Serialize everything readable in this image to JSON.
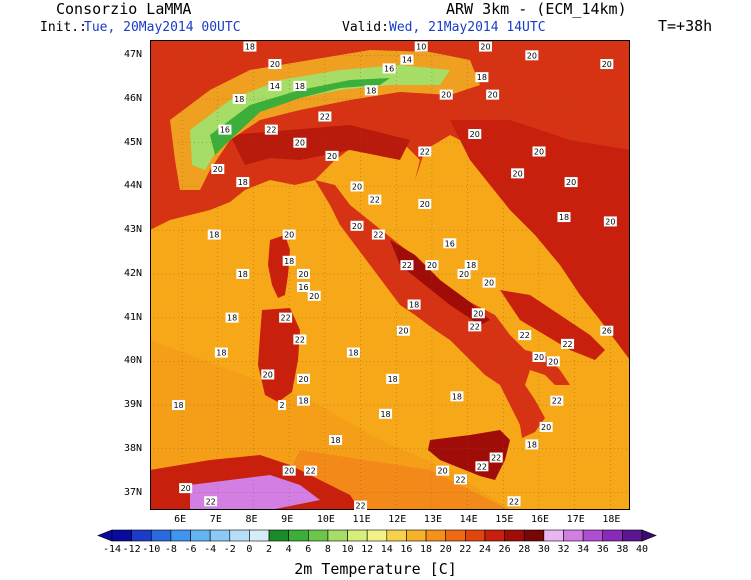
{
  "header": {
    "org": "Consorzio LaMMA",
    "model": "ARW 3km - (ECM_14km)",
    "init_label": "Init.:",
    "init_value": "Tue, 20May2014 00UTC",
    "valid_label": "Valid:",
    "valid_value": "Wed, 21May2014 14UTC",
    "lead": "T=+38h"
  },
  "axes": {
    "lat_ticks": [
      "47N",
      "46N",
      "45N",
      "44N",
      "43N",
      "42N",
      "41N",
      "40N",
      "39N",
      "38N",
      "37N"
    ],
    "lon_ticks": [
      "6E",
      "7E",
      "8E",
      "9E",
      "10E",
      "11E",
      "12E",
      "13E",
      "14E",
      "15E",
      "16E",
      "17E",
      "18E"
    ]
  },
  "colorbar": {
    "labels": [
      "-14",
      "-12",
      "-10",
      "-8",
      "-6",
      "-4",
      "-2",
      "0",
      "2",
      "4",
      "6",
      "8",
      "10",
      "12",
      "14",
      "16",
      "18",
      "20",
      "22",
      "24",
      "26",
      "28",
      "30",
      "32",
      "34",
      "36",
      "38",
      "40"
    ],
    "colors": [
      "#0a0a9e",
      "#1a3cc8",
      "#2a6ae0",
      "#3f95ef",
      "#62b4f3",
      "#8ccaf5",
      "#b5def7",
      "#d6ecf8",
      "#1a8a2a",
      "#3cae3a",
      "#6cc64c",
      "#a6dd66",
      "#d6ee7a",
      "#f2f28a",
      "#f6d24c",
      "#f6b22a",
      "#f6901a",
      "#ef6a12",
      "#e2440e",
      "#c8200c",
      "#a00c08",
      "#780606",
      "#eab6f2",
      "#d27ee2",
      "#b04ed2",
      "#8a2ab8",
      "#5c1490"
    ],
    "title": "2m Temperature [C]"
  },
  "map": {
    "labels": [
      {
        "t": "18",
        "lon": 6.9,
        "lat": 42.9
      },
      {
        "t": "18",
        "lon": 7.1,
        "lat": 40.2
      },
      {
        "t": "18",
        "lon": 5.9,
        "lat": 39.0
      },
      {
        "t": "18",
        "lon": 7.4,
        "lat": 41.0
      },
      {
        "t": "18",
        "lon": 7.7,
        "lat": 42.0
      },
      {
        "t": "18",
        "lon": 10.8,
        "lat": 40.2
      },
      {
        "t": "18",
        "lon": 11.9,
        "lat": 39.6
      },
      {
        "t": "18",
        "lon": 11.7,
        "lat": 38.8
      },
      {
        "t": "18",
        "lon": 10.3,
        "lat": 38.2
      },
      {
        "t": "18",
        "lon": 13.7,
        "lat": 39.2
      },
      {
        "t": "18",
        "lon": 12.5,
        "lat": 41.3
      },
      {
        "t": "20",
        "lon": 12.2,
        "lat": 40.7
      },
      {
        "t": "20",
        "lon": 9.7,
        "lat": 41.5
      },
      {
        "t": "22",
        "lon": 9.3,
        "lat": 40.5
      },
      {
        "t": "20",
        "lon": 9.4,
        "lat": 39.6
      },
      {
        "t": "18",
        "lon": 9.4,
        "lat": 39.1
      },
      {
        "t": "20",
        "lon": 8.4,
        "lat": 39.7
      },
      {
        "t": "2",
        "lon": 8.8,
        "lat": 39.0
      },
      {
        "t": "22",
        "lon": 8.9,
        "lat": 41.0
      },
      {
        "t": "18",
        "lon": 9.0,
        "lat": 42.3
      },
      {
        "t": "20",
        "lon": 9.0,
        "lat": 42.9
      },
      {
        "t": "20",
        "lon": 9.4,
        "lat": 42.0
      },
      {
        "t": "16",
        "lon": 9.4,
        "lat": 41.7
      },
      {
        "t": "20",
        "lon": 10.9,
        "lat": 43.1
      },
      {
        "t": "22",
        "lon": 11.5,
        "lat": 42.9
      },
      {
        "t": "22",
        "lon": 12.3,
        "lat": 42.2
      },
      {
        "t": "20",
        "lon": 13.0,
        "lat": 42.2
      },
      {
        "t": "16",
        "lon": 13.5,
        "lat": 42.7
      },
      {
        "t": "20",
        "lon": 13.9,
        "lat": 42.0
      },
      {
        "t": "18",
        "lon": 14.1,
        "lat": 42.2
      },
      {
        "t": "20",
        "lon": 14.6,
        "lat": 41.8
      },
      {
        "t": "20",
        "lon": 14.3,
        "lat": 41.1
      },
      {
        "t": "22",
        "lon": 14.2,
        "lat": 40.8
      },
      {
        "t": "22",
        "lon": 15.6,
        "lat": 40.6
      },
      {
        "t": "20",
        "lon": 16.0,
        "lat": 40.1
      },
      {
        "t": "20",
        "lon": 16.4,
        "lat": 40.0
      },
      {
        "t": "22",
        "lon": 16.8,
        "lat": 40.4
      },
      {
        "t": "26",
        "lon": 17.9,
        "lat": 40.7
      },
      {
        "t": "22",
        "lon": 16.5,
        "lat": 39.1
      },
      {
        "t": "20",
        "lon": 16.2,
        "lat": 38.5
      },
      {
        "t": "18",
        "lon": 15.8,
        "lat": 38.1
      },
      {
        "t": "22",
        "lon": 14.8,
        "lat": 37.8
      },
      {
        "t": "22",
        "lon": 14.4,
        "lat": 37.6
      },
      {
        "t": "20",
        "lon": 13.3,
        "lat": 37.5
      },
      {
        "t": "22",
        "lon": 13.8,
        "lat": 37.3
      },
      {
        "t": "22",
        "lon": 15.3,
        "lat": 36.8
      },
      {
        "t": "22",
        "lon": 11.0,
        "lat": 36.7
      },
      {
        "t": "22",
        "lon": 9.6,
        "lat": 37.5
      },
      {
        "t": "20",
        "lon": 9.0,
        "lat": 37.5
      },
      {
        "t": "20",
        "lon": 6.1,
        "lat": 37.1
      },
      {
        "t": "22",
        "lon": 6.8,
        "lat": 36.8
      },
      {
        "t": "20",
        "lon": 12.8,
        "lat": 43.6
      },
      {
        "t": "22",
        "lon": 11.4,
        "lat": 43.7
      },
      {
        "t": "20",
        "lon": 10.2,
        "lat": 44.7
      },
      {
        "t": "20",
        "lon": 10.9,
        "lat": 44.0
      },
      {
        "t": "22",
        "lon": 12.8,
        "lat": 44.8
      },
      {
        "t": "20",
        "lon": 14.2,
        "lat": 45.2
      },
      {
        "t": "20",
        "lon": 16.0,
        "lat": 44.8
      },
      {
        "t": "20",
        "lon": 15.4,
        "lat": 44.3
      },
      {
        "t": "20",
        "lon": 16.9,
        "lat": 44.1
      },
      {
        "t": "18",
        "lon": 16.7,
        "lat": 43.3
      },
      {
        "t": "20",
        "lon": 18.0,
        "lat": 43.2
      },
      {
        "t": "20",
        "lon": 14.7,
        "lat": 46.1
      },
      {
        "t": "18",
        "lon": 14.4,
        "lat": 46.5
      },
      {
        "t": "20",
        "lon": 15.8,
        "lat": 47.0
      },
      {
        "t": "20",
        "lon": 13.4,
        "lat": 46.1
      },
      {
        "t": "18",
        "lon": 11.3,
        "lat": 46.2
      },
      {
        "t": "14",
        "lon": 12.3,
        "lat": 46.9
      },
      {
        "t": "16",
        "lon": 11.8,
        "lat": 46.7
      },
      {
        "t": "18",
        "lon": 9.3,
        "lat": 46.3
      },
      {
        "t": "14",
        "lon": 8.6,
        "lat": 46.3
      },
      {
        "t": "18",
        "lon": 7.6,
        "lat": 46.0
      },
      {
        "t": "16",
        "lon": 7.2,
        "lat": 45.3
      },
      {
        "t": "20",
        "lon": 7.0,
        "lat": 44.4
      },
      {
        "t": "18",
        "lon": 7.7,
        "lat": 44.1
      },
      {
        "t": "20",
        "lon": 9.3,
        "lat": 45.0
      },
      {
        "t": "22",
        "lon": 8.5,
        "lat": 45.3
      },
      {
        "t": "18",
        "lon": 7.9,
        "lat": 47.2
      },
      {
        "t": "20",
        "lon": 8.6,
        "lat": 46.8
      },
      {
        "t": "10",
        "lon": 12.7,
        "lat": 47.2
      },
      {
        "t": "20",
        "lon": 14.5,
        "lat": 47.2
      },
      {
        "t": "20",
        "lon": 17.9,
        "lat": 46.8
      },
      {
        "t": "22",
        "lon": 10.0,
        "lat": 45.6
      }
    ]
  }
}
